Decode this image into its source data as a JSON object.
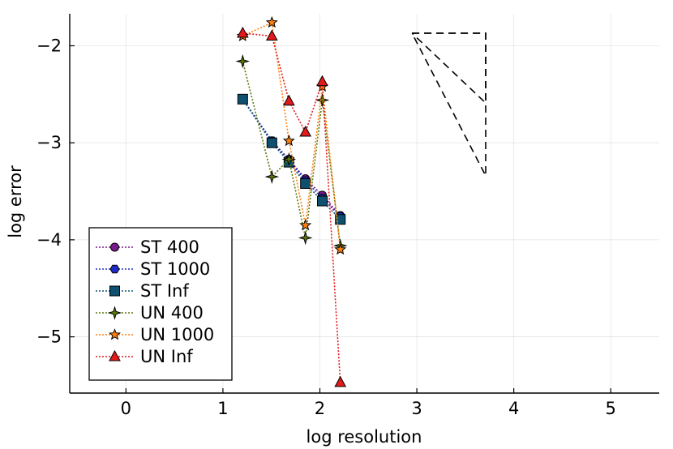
{
  "chart_data": {
    "type": "line",
    "title": "",
    "xlabel": "log resolution",
    "ylabel": "log error",
    "xlim": [
      -0.58,
      5.5
    ],
    "ylim": [
      -5.58,
      -1.67
    ],
    "xticks": [
      0,
      1,
      2,
      3,
      4,
      5
    ],
    "xtick_labels": [
      "0",
      "1",
      "2",
      "3",
      "4",
      "5"
    ],
    "yticks": [
      -5,
      -4,
      -3,
      -2
    ],
    "ytick_labels": [
      "−5",
      "−4",
      "−3",
      "−2"
    ],
    "grid": true,
    "legend_position": "bottom-left",
    "x": [
      1.204,
      1.505,
      1.681,
      1.851,
      2.025,
      2.211
    ],
    "series": [
      {
        "name": "ST 400",
        "color": "#7a1a8f",
        "marker": "circle",
        "values": [
          -2.55,
          -2.98,
          -3.17,
          -3.37,
          -3.54,
          -3.75
        ]
      },
      {
        "name": "ST 1000",
        "color": "#1f2bc8",
        "marker": "hexagon",
        "values": [
          -2.55,
          -2.98,
          -3.18,
          -3.39,
          -3.57,
          -3.76
        ]
      },
      {
        "name": "ST Inf",
        "color": "#0d5070",
        "marker": "square",
        "values": [
          -2.55,
          -3.0,
          -3.2,
          -3.42,
          -3.6,
          -3.79
        ]
      },
      {
        "name": "UN 400",
        "color": "#5a7a0a",
        "marker": "star4",
        "values": [
          -2.16,
          -3.35,
          -3.17,
          -3.98,
          -2.56,
          -4.06
        ]
      },
      {
        "name": "UN 1000",
        "color": "#ff7f0e",
        "marker": "star5",
        "values": [
          -1.9,
          -1.76,
          -2.98,
          -3.85,
          -2.42,
          -4.1
        ]
      },
      {
        "name": "UN Inf",
        "color": "#e31a1c",
        "marker": "triangle",
        "values": [
          -1.87,
          -1.9,
          -2.57,
          -2.89,
          -2.37,
          -5.47
        ]
      }
    ],
    "slope_triangles": [
      {
        "x": [
          2.95,
          3.71,
          3.71,
          2.95
        ],
        "y": [
          -1.87,
          -1.87,
          -2.59,
          -1.87
        ]
      },
      {
        "x": [
          2.95,
          3.71,
          3.71,
          2.95
        ],
        "y": [
          -1.87,
          -1.87,
          -3.34,
          -1.87
        ]
      }
    ]
  }
}
